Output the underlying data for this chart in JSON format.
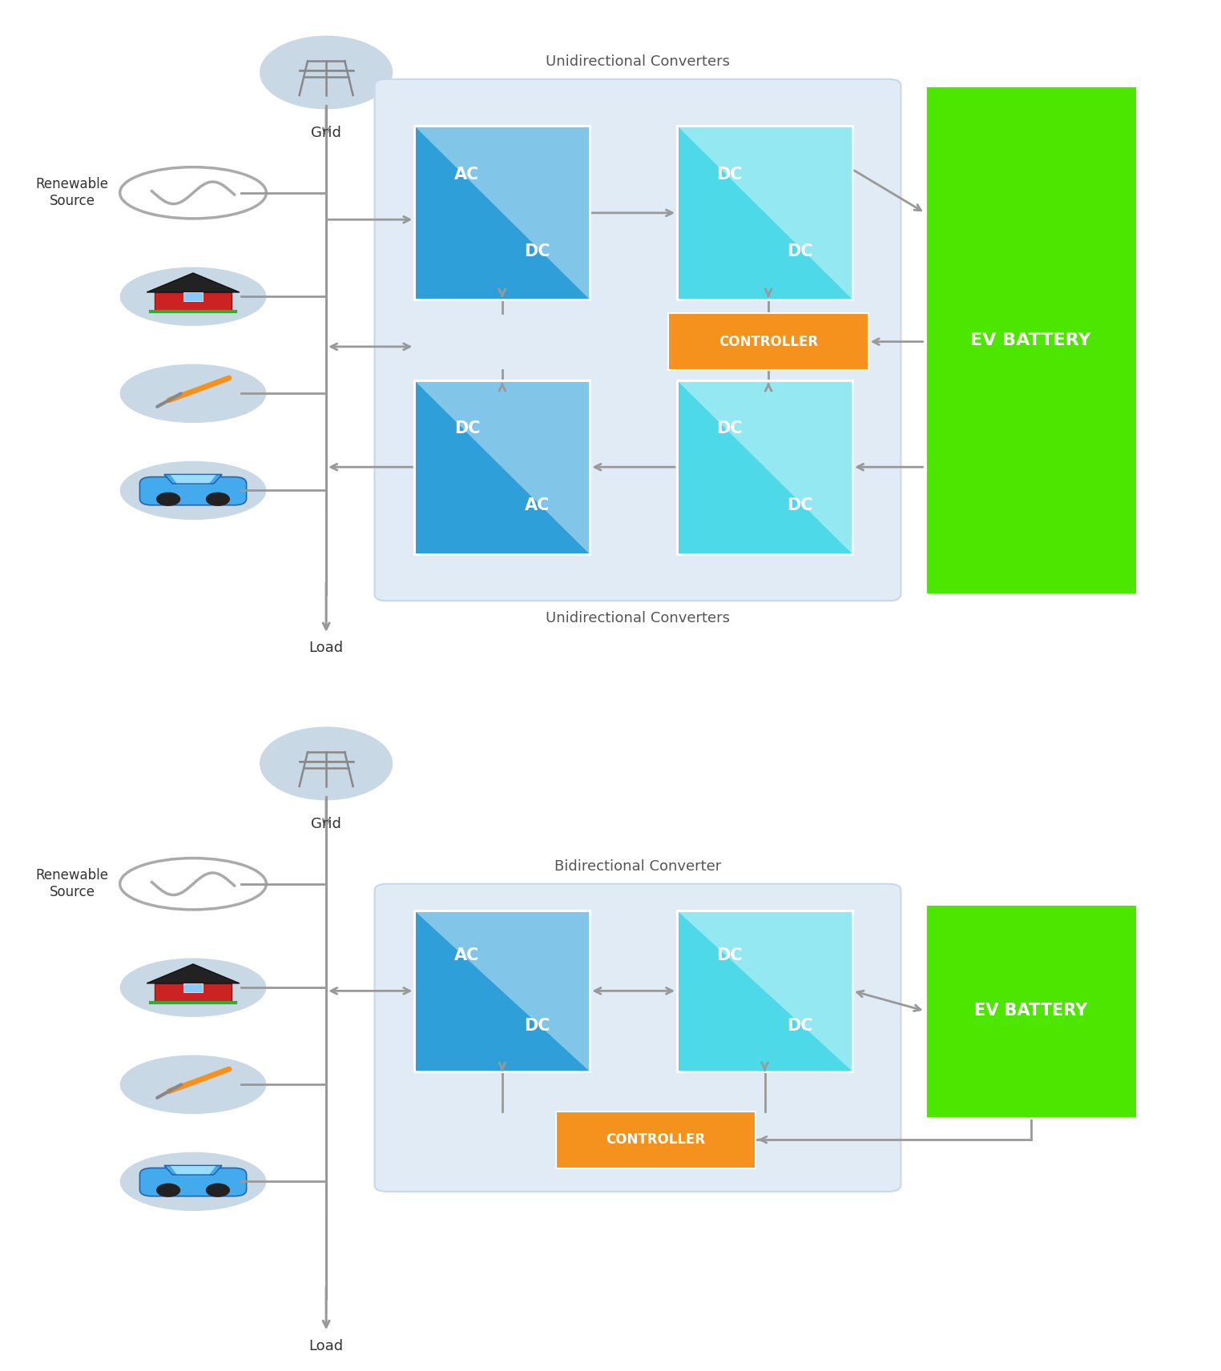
{
  "bg_color": "#ffffff",
  "blue_color": "#2E9FD9",
  "cyan_color": "#4DD9E8",
  "orange_color": "#F5921E",
  "green_color": "#4CE600",
  "arrow_color": "#999999",
  "panel_color": "#E0EBF5",
  "panel_edge": "#C8D8EA",
  "circle_bg": "#C8D8E4",
  "text_dark": "#333333",
  "white": "#ffffff",
  "diag1": {
    "title_top": "Unidirectional Converters",
    "title_bot": "Unidirectional Converters",
    "panel": [
      0.33,
      0.22,
      0.38,
      0.65
    ],
    "b_tl": [
      0.355,
      0.65,
      0.12,
      0.2,
      "#2E9FD9",
      "AC",
      "DC"
    ],
    "b_tr": [
      0.545,
      0.65,
      0.12,
      0.2,
      "#4DD9E8",
      "DC",
      "DC"
    ],
    "b_bl": [
      0.355,
      0.29,
      0.12,
      0.2,
      "#2E9FD9",
      "DC",
      "AC"
    ],
    "b_br": [
      0.545,
      0.29,
      0.12,
      0.2,
      "#4DD9E8",
      "DC",
      "DC"
    ],
    "ctrl": [
      0.545,
      0.465,
      0.12,
      0.075,
      "#F5921E",
      "CONTROLLER"
    ],
    "ev": [
      0.745,
      0.22,
      0.155,
      0.65,
      "#4CE600",
      "EV BATTERY"
    ]
  },
  "diag2": {
    "title_top": "Bidirectional Converter",
    "panel": [
      0.33,
      0.3,
      0.38,
      0.38
    ],
    "b_l": [
      0.355,
      0.44,
      0.12,
      0.2,
      "#2E9FD9",
      "AC",
      "DC"
    ],
    "b_r": [
      0.545,
      0.44,
      0.12,
      0.2,
      "#4DD9E8",
      "DC",
      "DC"
    ],
    "ctrl": [
      0.468,
      0.245,
      0.135,
      0.075,
      "#F5921E",
      "CONTROLLER"
    ],
    "ev": [
      0.745,
      0.36,
      0.155,
      0.36,
      "#4CE600",
      "EV BATTERY"
    ]
  }
}
